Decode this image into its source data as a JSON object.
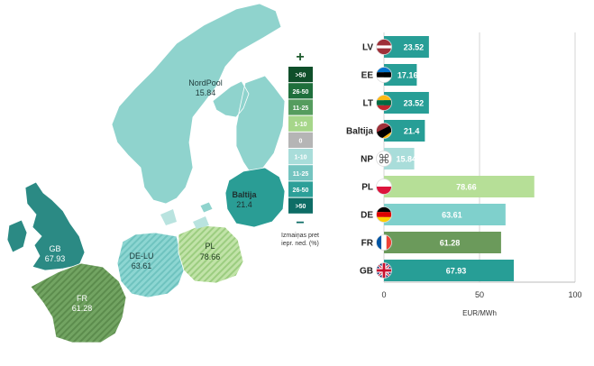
{
  "map": {
    "regions": [
      {
        "label": "NordPool",
        "value": "15.84",
        "color": "#8fd3cd"
      },
      {
        "label": "Baltija",
        "value": "21.4",
        "color": "#2a9d95"
      },
      {
        "label": "GB",
        "value": "67.93",
        "color": "#2b8a84"
      },
      {
        "label": "DE-LU",
        "value": "63.61",
        "color": "#7fcfcb"
      },
      {
        "label": "PL",
        "value": "78.66",
        "color": "#b5dc9c"
      },
      {
        "label": "FR",
        "value": "61.28",
        "color": "#6a9a5a"
      }
    ]
  },
  "legend": {
    "plus": "+",
    "minus": "−",
    "items": [
      {
        "label": ">50",
        "color": "#0f4f2a"
      },
      {
        "label": "26-50",
        "color": "#1f6f3c"
      },
      {
        "label": "11-25",
        "color": "#559c5e"
      },
      {
        "label": "1-10",
        "color": "#a6d68a"
      },
      {
        "label": "0",
        "color": "#b5b5b5"
      },
      {
        "label": "1-10",
        "color": "#a9ddda"
      },
      {
        "label": "11-25",
        "color": "#74c4c0"
      },
      {
        "label": "26-50",
        "color": "#2c9f98"
      },
      {
        "label": ">50",
        "color": "#0e6d66"
      }
    ],
    "caption_line1": "Izmaiņas pret",
    "caption_line2": "iepr. ned. (%)"
  },
  "chart_data": {
    "type": "bar",
    "orientation": "horizontal",
    "categories": [
      "LV",
      "EE",
      "LT",
      "Baltija",
      "NP",
      "PL",
      "DE",
      "FR",
      "GB"
    ],
    "values": [
      23.52,
      17.16,
      23.52,
      21.4,
      15.84,
      78.66,
      63.61,
      61.28,
      67.93
    ],
    "value_labels": [
      "23.52",
      "17.16",
      "23.52",
      "21.4",
      "15.84",
      "78.66",
      "63.61",
      "61.28",
      "67.93"
    ],
    "bar_colors": [
      "#279e96",
      "#279e96",
      "#279e96",
      "#279e96",
      "#a9ddda",
      "#b6df97",
      "#7fd0cc",
      "#6b9a5b",
      "#279e96"
    ],
    "flags": [
      "lv",
      "ee",
      "lt",
      "baltics",
      "nordpool",
      "pl",
      "de",
      "fr",
      "gb"
    ],
    "xlabel": "EUR/MWh",
    "xlim": [
      0,
      100
    ],
    "xticks": [
      "0",
      "50",
      "100"
    ],
    "grid": true
  }
}
